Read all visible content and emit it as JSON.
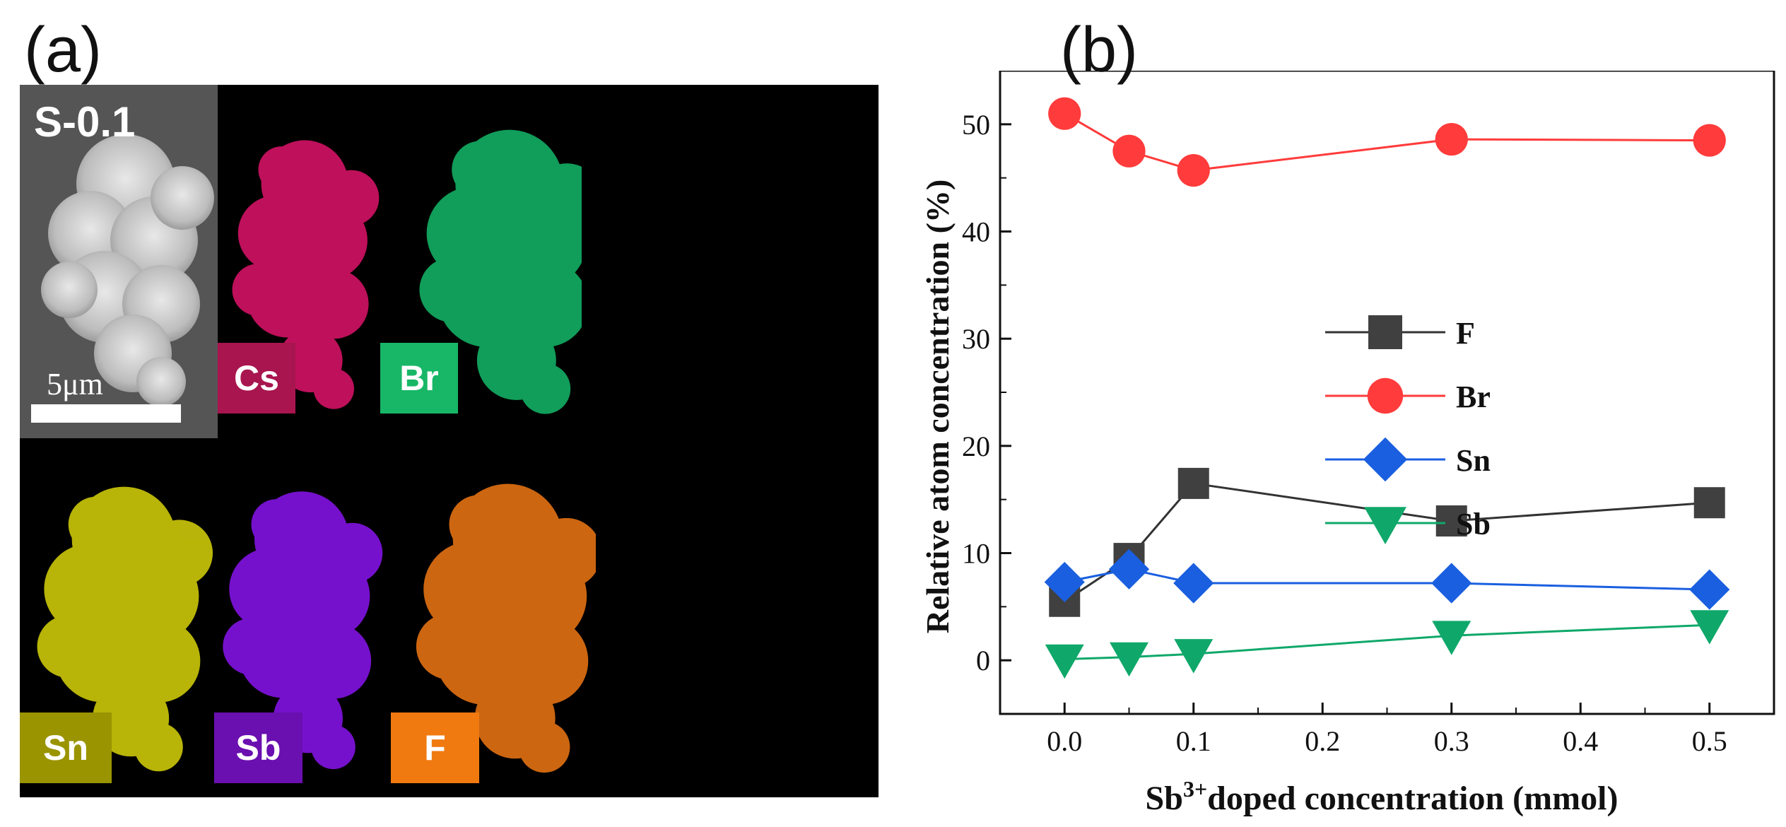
{
  "panel_a": {
    "label": "(a)",
    "sample_label": "S-0.1",
    "scale_bar_label": "5μm",
    "maps": [
      {
        "element": "Cs",
        "color": "#e0136b",
        "tag_color": "#a8154f"
      },
      {
        "element": "Br",
        "color": "#14b96a",
        "tag_color": "#17b767"
      },
      {
        "element": "Sn",
        "color": "#d9d40a",
        "tag_color": "#9a9400"
      },
      {
        "element": "Sb",
        "color": "#8a14f0",
        "tag_color": "#6a0fb0"
      },
      {
        "element": "F",
        "color": "#f07814",
        "tag_color": "#f07a10"
      }
    ]
  },
  "panel_b": {
    "label": "(b)"
  },
  "chart_data": {
    "type": "line",
    "title": "",
    "xlabel_base": "Sb",
    "xlabel_sup": "3+",
    "xlabel_rest": "doped concentration (mmol)",
    "ylabel": "Relative atom concentration (%)",
    "x": [
      0.0,
      0.05,
      0.1,
      0.3,
      0.5
    ],
    "xlim": [
      -0.05,
      0.55
    ],
    "ylim": [
      -5,
      55
    ],
    "x_ticks": [
      0.0,
      0.1,
      0.2,
      0.3,
      0.4,
      0.5
    ],
    "x_tick_labels": [
      "0.0",
      "0.1",
      "0.2",
      "0.3",
      "0.4",
      "0.5"
    ],
    "y_ticks": [
      0,
      10,
      20,
      30,
      40,
      50
    ],
    "y_tick_labels": [
      "0",
      "10",
      "20",
      "30",
      "40",
      "50"
    ],
    "legend_position": "center-right",
    "series": [
      {
        "name": "F",
        "marker": "square",
        "color": "#404040",
        "line_color": "#333333",
        "values": [
          5.5,
          9.5,
          16.5,
          13.0,
          14.7
        ]
      },
      {
        "name": "Br",
        "marker": "circle",
        "color": "#ff3b3b",
        "line_color": "#ff3b3b",
        "values": [
          51.0,
          47.5,
          45.7,
          48.6,
          48.5
        ]
      },
      {
        "name": "Sn",
        "marker": "diamond",
        "color": "#1a5fe0",
        "line_color": "#1a5fe0",
        "values": [
          7.3,
          8.5,
          7.2,
          7.2,
          6.6
        ]
      },
      {
        "name": "Sb",
        "marker": "triangle-down",
        "color": "#0fa86a",
        "line_color": "#0fa86a",
        "values": [
          0.1,
          0.3,
          0.6,
          2.3,
          3.3
        ]
      }
    ]
  }
}
